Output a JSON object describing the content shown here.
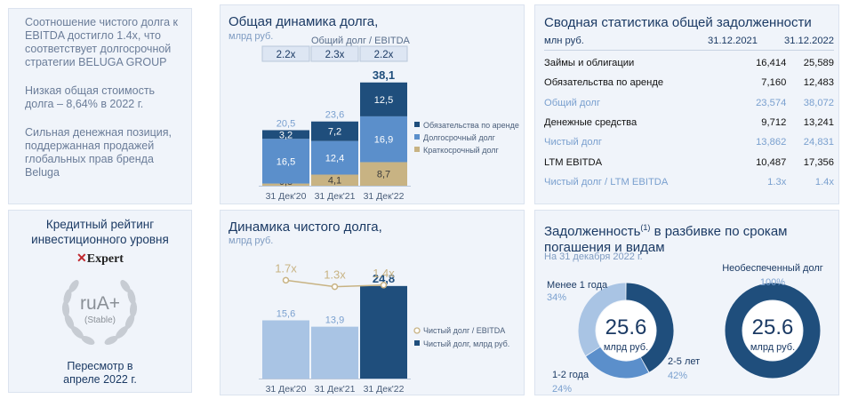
{
  "left_text": {
    "p1": "Соотношение чистого долга к EBITDA достигло 1.4x, что соответствует долгосрочной стратегии BELUGA GROUP",
    "p2": "Низкая общая стоимость долга – 8,64% в 2022 г.",
    "p3": "Сильная денежная позиция, поддержанная продажей глобальных прав бренда Beluga"
  },
  "rating": {
    "title_line1": "Кредитный рейтинг",
    "title_line2": "инвестиционного уровня",
    "agency": "Expert",
    "grade": "ruA+",
    "outlook": "(Stable)",
    "review_line1": "Пересмотр в",
    "review_line2": "апреле 2022 г."
  },
  "colors": {
    "dark_blue": "#1f4e7c",
    "mid_blue": "#5b8fcb",
    "light_blue": "#a9c4e4",
    "gold": "#c8b383",
    "text_dark": "#1b3a64"
  },
  "chart_data": [
    {
      "id": "total_debt",
      "type": "bar",
      "stacked": true,
      "title": "Общая динамика долга,",
      "unit_label": "млрд руб.",
      "ratio_label": "Общий долг / EBITDA",
      "ratios": [
        "2.2x",
        "2.3x",
        "2.2x"
      ],
      "categories": [
        "31 Дек'20",
        "31 Дек'21",
        "31 Дек'22"
      ],
      "series": [
        {
          "name": "Краткосрочный долг",
          "values": [
            0.8,
            4.1,
            8.7
          ],
          "labels": [
            "0,8",
            "4,1",
            "8,7"
          ],
          "color": "#c8b383"
        },
        {
          "name": "Долгосрочный долг",
          "values": [
            16.5,
            12.4,
            16.9
          ],
          "labels": [
            "16,5",
            "12,4",
            "16,9"
          ],
          "color": "#5b8fcb"
        },
        {
          "name": "Обязательства по аренде",
          "values": [
            3.2,
            7.2,
            12.5
          ],
          "labels": [
            "3,2",
            "7,2",
            "12,5"
          ],
          "color": "#1f4e7c"
        }
      ],
      "totals": [
        "20,5",
        "23,6",
        "38,1"
      ],
      "ylim": [
        0,
        40
      ]
    },
    {
      "id": "net_debt",
      "type": "bar",
      "title": "Динамика чистого долга,",
      "unit_label": "млрд руб.",
      "categories": [
        "31 Дек'20",
        "31 Дек'21",
        "31 Дек'22"
      ],
      "series": [
        {
          "name": "Чистый долг, млрд руб.",
          "values": [
            15.6,
            13.9,
            24.8
          ],
          "labels": [
            "15,6",
            "13,9",
            "24,8"
          ]
        },
        {
          "name": "Чистый долг / EBITDA",
          "type": "line",
          "values": [
            1.7,
            1.3,
            1.4
          ],
          "labels": [
            "1.7x",
            "1.3x",
            "1.4x"
          ]
        }
      ],
      "ylim": [
        0,
        30
      ]
    },
    {
      "id": "maturity",
      "type": "pie",
      "title": "Задолженность",
      "title_sup": "(1)",
      "title_rest": " в разбивке по срокам",
      "title_line2": "погашения и видам",
      "subtitle": "На 31 декабря 2022 г.",
      "donuts": [
        {
          "center_value": "25.6",
          "center_unit": "млрд руб.",
          "slices": [
            {
              "label": "Менее 1 года",
              "value": 34,
              "pct": "34%"
            },
            {
              "label": "1-2 года",
              "value": 24,
              "pct": "24%"
            },
            {
              "label": "2-5 лет",
              "value": 42,
              "pct": "42%"
            }
          ]
        },
        {
          "center_value": "25.6",
          "center_unit": "млрд руб.",
          "slices": [
            {
              "label": "Необеспеченный долг",
              "value": 100,
              "pct": "100%"
            }
          ]
        }
      ]
    }
  ],
  "stats": {
    "title": "Сводная статистика общей задолженности",
    "unit": "млн руб.",
    "col1": "31.12.2021",
    "col2": "31.12.2022",
    "rows": [
      {
        "label": "Займы и облигации",
        "v1": "16,414",
        "v2": "25,589"
      },
      {
        "label": "Обязательства по аренде",
        "v1": "7,160",
        "v2": "12,483"
      },
      {
        "label": "Общий долг",
        "v1": "23,574",
        "v2": "38,072"
      },
      {
        "label": "Денежные средства",
        "v1": "9,712",
        "v2": "13,241"
      },
      {
        "label": "Чистый долг",
        "v1": "13,862",
        "v2": "24,831"
      },
      {
        "label": "LTM EBITDA",
        "v1": "10,487",
        "v2": "17,356"
      },
      {
        "label": "Чистый долг / LTM EBITDA",
        "v1": "1.3x",
        "v2": "1.4x"
      }
    ]
  }
}
